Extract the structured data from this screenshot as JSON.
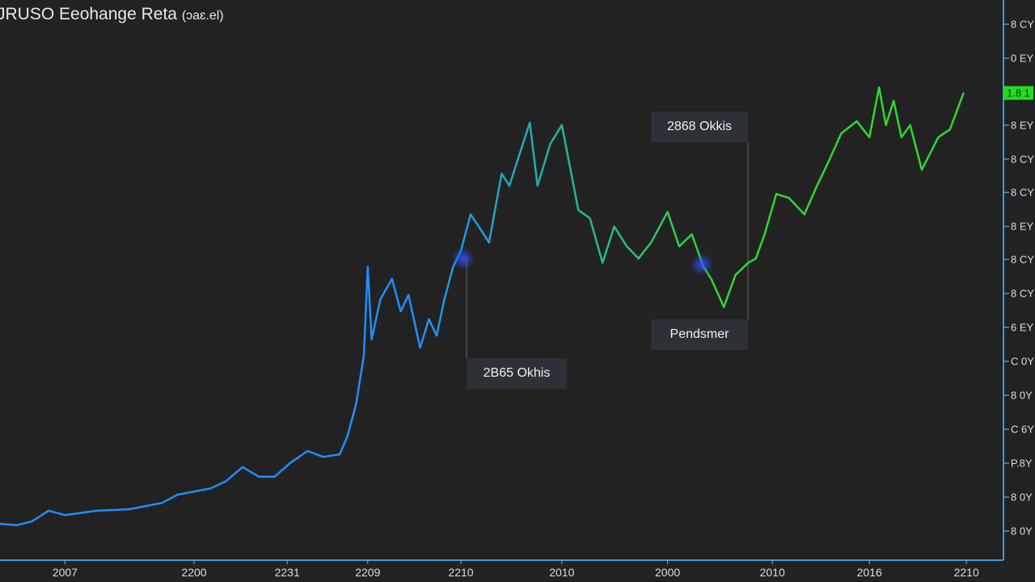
{
  "chart_data": {
    "type": "line",
    "title": "JRUSO Eeohange Reta",
    "subtitle": "(ɔaɛ.el)",
    "xlabel": "",
    "ylabel": "",
    "xlim": [
      0,
      103.3
    ],
    "ylim": [
      0,
      115
    ],
    "grid": false,
    "colors": {
      "start": "#1e8fff",
      "end": "#2fd82f",
      "axis": "#3d9bd6",
      "highlight": "#22dd22"
    },
    "x": [
      0,
      1.7,
      3.3,
      5,
      6.7,
      10,
      13.3,
      16.7,
      18.3,
      21.7,
      23.3,
      25,
      26.7,
      28.3,
      30,
      31.7,
      33.3,
      35,
      35.8,
      36.7,
      37.5,
      37.9,
      38.3,
      39.2,
      40.4,
      41.3,
      42.1,
      43.3,
      44.2,
      45,
      45.8,
      46.7,
      47.5,
      48.5,
      49.6,
      50.4,
      51.7,
      52.5,
      53.3,
      54.6,
      55.4,
      56.7,
      57.9,
      58.8,
      59.6,
      60.8,
      62.1,
      63.3,
      64.6,
      65.8,
      67.1,
      68.8,
      70,
      71.3,
      72.5,
      73.3,
      74.6,
      75.8,
      77.1,
      77.9,
      78.8,
      80,
      81.3,
      82.9,
      84.2,
      85.4,
      86.7,
      88.3,
      89.6,
      90.6,
      91.3,
      92.1,
      92.9,
      93.8,
      95,
      96.7,
      97.9,
      99.3
    ],
    "values": [
      7,
      6.7,
      7.5,
      9.7,
      8.8,
      9.7,
      10,
      11.3,
      13,
      14.3,
      15.8,
      18.7,
      16.7,
      16.7,
      19.7,
      22,
      20.8,
      21.3,
      25,
      31.7,
      41.7,
      60,
      45,
      53.3,
      57.5,
      50.8,
      54.2,
      43.3,
      49.2,
      45.8,
      53.3,
      60,
      63.3,
      70.8,
      67.5,
      65,
      79.2,
      76.7,
      81.7,
      89.7,
      76.7,
      85.3,
      89.2,
      80,
      71.7,
      70,
      60.8,
      68.3,
      64.2,
      61.7,
      65,
      71.3,
      64.2,
      66.7,
      60,
      57.5,
      51.7,
      58.3,
      60.8,
      61.7,
      66.7,
      75,
      74.2,
      70.8,
      76.7,
      81.7,
      87.5,
      90,
      86.7,
      97,
      89.2,
      94.2,
      86.7,
      89.2,
      80,
      86.7,
      88.3,
      95.8
    ],
    "y_ticks": [
      {
        "value": 110,
        "label": "8 CY"
      },
      {
        "value": 103,
        "label": "0 EY"
      },
      {
        "value": 95.8,
        "label": "1.8 1",
        "highlight": true
      },
      {
        "value": 89.2,
        "label": "8 EY"
      },
      {
        "value": 82.2,
        "label": "8 CY"
      },
      {
        "value": 75.3,
        "label": "8 CY"
      },
      {
        "value": 68.3,
        "label": "8 EY"
      },
      {
        "value": 61.5,
        "label": "8 CY"
      },
      {
        "value": 54.5,
        "label": "8 CY"
      },
      {
        "value": 47.5,
        "label": "6 EY"
      },
      {
        "value": 40.5,
        "label": "C 0Y"
      },
      {
        "value": 33.5,
        "label": "8 0Y"
      },
      {
        "value": 26.5,
        "label": "C 6Y"
      },
      {
        "value": 19.5,
        "label": "P.8Y"
      },
      {
        "value": 12.5,
        "label": "8 0Y"
      },
      {
        "value": 5.5,
        "label": "8 0Y"
      }
    ],
    "x_ticks": [
      {
        "value": 6.7,
        "label": "2007"
      },
      {
        "value": 20,
        "label": "2200"
      },
      {
        "value": 29.6,
        "label": "2231"
      },
      {
        "value": 37.9,
        "label": "2209"
      },
      {
        "value": 47.5,
        "label": "2210"
      },
      {
        "value": 57.9,
        "label": "2010"
      },
      {
        "value": 68.8,
        "label": "2000"
      },
      {
        "value": 79.6,
        "label": "2010"
      },
      {
        "value": 89.6,
        "label": "2016"
      },
      {
        "value": 99.6,
        "label": "2210"
      }
    ],
    "annotations": [
      {
        "label": "2868 Okkis",
        "x": 72.5,
        "value": 60.5
      },
      {
        "label": "Pendsmer",
        "x": 72.5,
        "value": 60.5
      },
      {
        "label": "2B65 Okhis",
        "x": 47.9,
        "value": 61.7
      }
    ]
  }
}
